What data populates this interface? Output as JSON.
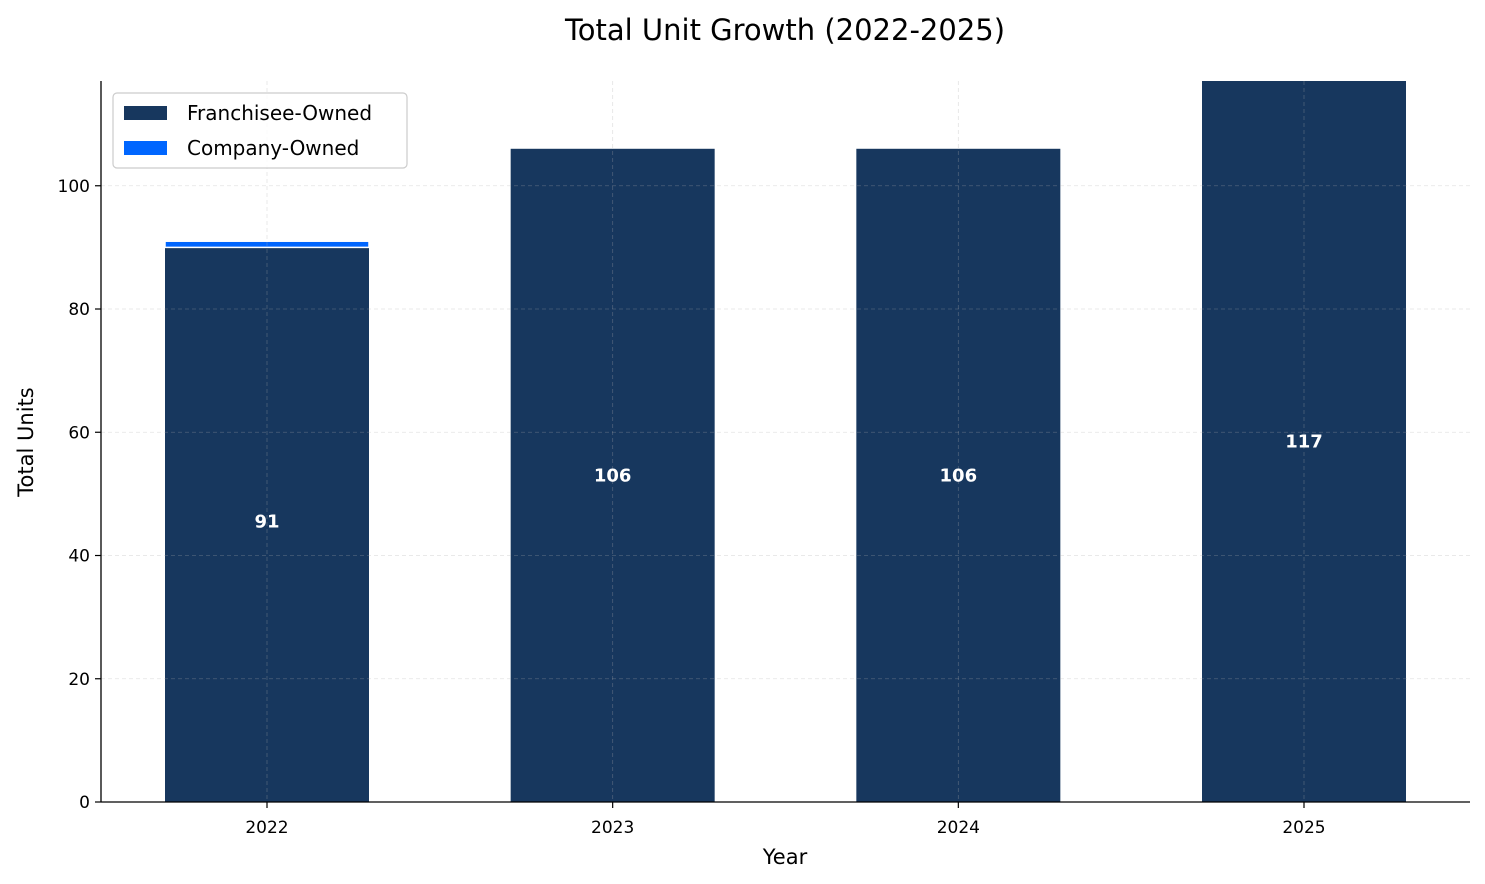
{
  "chart_data": {
    "type": "bar",
    "stacked": true,
    "title": "Total Unit Growth (2022-2025)",
    "xlabel": "Year",
    "ylabel": "Total Units",
    "categories": [
      "2022",
      "2023",
      "2024",
      "2025"
    ],
    "series": [
      {
        "name": "Franchisee-Owned",
        "values": [
          90,
          106,
          106,
          117
        ],
        "color": "#17375e"
      },
      {
        "name": "Company-Owned",
        "values": [
          1,
          0,
          0,
          0
        ],
        "color": "#0066ff"
      }
    ],
    "totals": [
      91,
      106,
      106,
      117
    ],
    "total_labels": [
      "91",
      "106",
      "106",
      "117"
    ],
    "ylim": [
      0,
      117
    ],
    "yticks": [
      0,
      20,
      40,
      60,
      80,
      100
    ],
    "ytick_labels": [
      "0",
      "20",
      "40",
      "60",
      "80",
      "100"
    ],
    "grid": true,
    "legend_position": "top-left"
  }
}
